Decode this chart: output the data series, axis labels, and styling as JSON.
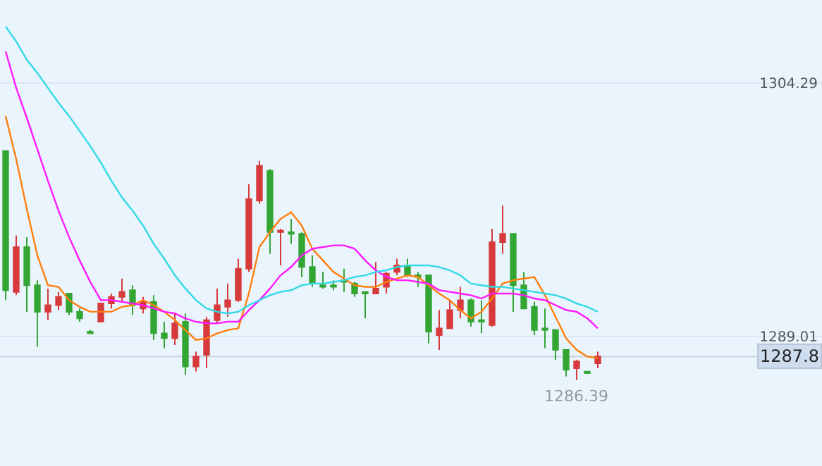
{
  "chart_data": {
    "type": "candlestick",
    "categories": [
      null,
      null,
      null,
      null,
      null,
      null,
      null,
      null,
      null,
      null,
      null,
      null,
      null,
      null,
      null,
      null,
      null,
      null,
      null,
      null,
      null,
      null,
      null,
      null,
      null,
      null,
      null,
      null,
      null,
      null,
      null,
      null,
      null,
      null,
      null,
      null,
      null,
      null,
      null,
      null,
      null,
      null,
      null,
      null,
      null,
      null,
      null,
      null,
      null,
      null,
      null,
      null,
      null,
      null,
      null,
      null,
      null
    ],
    "ohlc": [
      [
        1300.2,
        1300.2,
        1291.2,
        1291.8
      ],
      [
        1291.7,
        1295.1,
        1291.5,
        1294.4
      ],
      [
        1294.4,
        1295.0,
        1290.5,
        1292.1
      ],
      [
        1292.1,
        1292.4,
        1288.4,
        1290.5
      ],
      [
        1290.5,
        1291.9,
        1290.0,
        1290.9
      ],
      [
        1290.9,
        1291.7,
        1290.6,
        1291.4
      ],
      [
        1291.6,
        1291.6,
        1290.3,
        1290.5
      ],
      [
        1290.5,
        1290.7,
        1289.9,
        1290.1
      ],
      [
        1289.3,
        1289.4,
        1289.2,
        1289.2
      ],
      [
        1289.9,
        1291.0,
        1289.9,
        1291.0
      ],
      [
        1291.0,
        1291.6,
        1290.7,
        1291.4
      ],
      [
        1291.4,
        1292.5,
        1291.1,
        1291.7
      ],
      [
        1291.8,
        1292.1,
        1290.3,
        1290.9
      ],
      [
        1290.7,
        1291.4,
        1290.4,
        1291.1
      ],
      [
        1291.1,
        1291.5,
        1288.8,
        1289.2
      ],
      [
        1289.2,
        1289.9,
        1288.3,
        1288.9
      ],
      [
        1288.9,
        1290.4,
        1288.5,
        1289.8
      ],
      [
        1289.9,
        1290.4,
        1286.7,
        1287.2
      ],
      [
        1287.2,
        1288.1,
        1286.9,
        1287.8
      ],
      [
        1287.9,
        1290.2,
        1287.1,
        1290.0
      ],
      [
        1290.0,
        1291.9,
        1289.8,
        1290.9
      ],
      [
        1290.8,
        1292.2,
        1290.2,
        1291.2
      ],
      [
        1291.2,
        1293.7,
        1291.1,
        1293.1
      ],
      [
        1293.1,
        1298.2,
        1292.9,
        1297.3
      ],
      [
        1297.2,
        1299.6,
        1297.0,
        1299.3
      ],
      [
        1299.0,
        1299.1,
        1294.0,
        1295.3
      ],
      [
        1295.3,
        1295.5,
        1293.3,
        1295.4
      ],
      [
        1295.3,
        1296.1,
        1294.6,
        1295.2
      ],
      [
        1295.2,
        1295.3,
        1292.6,
        1293.2
      ],
      [
        1293.2,
        1293.9,
        1292.0,
        1292.2
      ],
      [
        1292.1,
        1292.9,
        1291.9,
        1292.0
      ],
      [
        1292.1,
        1292.4,
        1291.8,
        1292.0
      ],
      [
        1292.4,
        1293.1,
        1291.7,
        1292.3
      ],
      [
        1292.2,
        1292.3,
        1291.4,
        1291.6
      ],
      [
        1291.7,
        1291.7,
        1290.1,
        1291.6
      ],
      [
        1291.6,
        1293.5,
        1291.6,
        1291.9
      ],
      [
        1292.0,
        1292.9,
        1291.6,
        1292.8
      ],
      [
        1292.9,
        1293.7,
        1292.7,
        1293.3
      ],
      [
        1293.3,
        1293.7,
        1292.6,
        1292.7
      ],
      [
        1292.7,
        1292.9,
        1292.0,
        1292.6
      ],
      [
        1292.7,
        1292.7,
        1288.6,
        1289.3
      ],
      [
        1289.1,
        1290.6,
        1288.2,
        1289.5
      ],
      [
        1289.5,
        1291.2,
        1289.5,
        1290.6
      ],
      [
        1290.6,
        1292.0,
        1290.1,
        1291.2
      ],
      [
        1291.2,
        1291.3,
        1289.6,
        1289.9
      ],
      [
        1290.0,
        1291.2,
        1289.2,
        1289.9
      ],
      [
        1289.7,
        1295.5,
        1289.6,
        1294.7
      ],
      [
        1294.7,
        1296.9,
        1294.0,
        1295.2
      ],
      [
        1295.2,
        1295.2,
        1290.5,
        1292.1
      ],
      [
        1292.1,
        1292.9,
        1290.7,
        1290.7
      ],
      [
        1290.8,
        1291.1,
        1289.1,
        1289.4
      ],
      [
        1289.5,
        1290.7,
        1288.3,
        1289.4
      ],
      [
        1289.4,
        1289.4,
        1287.6,
        1288.2
      ],
      [
        1288.2,
        1288.2,
        1286.6,
        1287.0
      ],
      [
        1287.1,
        1287.6,
        1286.39,
        1287.5
      ],
      [
        1286.9,
        1286.9,
        1286.8,
        1286.8
      ],
      [
        1287.4,
        1288.1,
        1287.1,
        1287.8
      ]
    ],
    "series": [
      {
        "type": "line",
        "color": "#ff7f0e",
        "values": [
          1302.3,
          1299.7,
          1296.7,
          1293.9,
          1292.1,
          1292.0,
          1291.2,
          1290.8,
          1290.5,
          1290.5,
          1290.5,
          1290.8,
          1290.9,
          1291.2,
          1290.9,
          1290.5,
          1290.0,
          1289.4,
          1288.8,
          1288.9,
          1289.2,
          1289.4,
          1289.5,
          1291.6,
          1294.4,
          1295.3,
          1296.1,
          1296.5,
          1295.7,
          1294.3,
          1293.6,
          1292.9,
          1292.5,
          1292.1,
          1292.0,
          1292.0,
          1292.3,
          1292.5,
          1292.7,
          1292.6,
          1292.1,
          1291.6,
          1291.2,
          1290.6,
          1290.1,
          1290.5,
          1291.3,
          1292.2,
          1292.4,
          1292.5,
          1292.6,
          1291.5,
          1290.2,
          1288.9,
          1288.2,
          1287.8,
          1287.7
        ]
      },
      {
        "type": "line",
        "color": "#ff1aff",
        "values": [
          1306.2,
          1304.0,
          1302.2,
          1300.3,
          1298.4,
          1296.6,
          1295.0,
          1293.6,
          1292.3,
          1291.2,
          1291.2,
          1291.1,
          1291.0,
          1290.9,
          1290.7,
          1290.5,
          1290.4,
          1290.1,
          1289.9,
          1289.8,
          1289.8,
          1289.9,
          1289.9,
          1290.6,
          1291.2,
          1291.9,
          1292.7,
          1293.2,
          1293.9,
          1294.3,
          1294.4,
          1294.5,
          1294.5,
          1294.3,
          1293.6,
          1293.0,
          1292.6,
          1292.4,
          1292.4,
          1292.3,
          1292.2,
          1291.8,
          1291.7,
          1291.6,
          1291.5,
          1291.3,
          1291.6,
          1291.6,
          1291.6,
          1291.5,
          1291.3,
          1291.2,
          1290.9,
          1290.6,
          1290.5,
          1290.1,
          1289.5
        ]
      },
      {
        "type": "line",
        "color": "#33d9e6",
        "values": [
          1307.7,
          1306.8,
          1305.7,
          1304.9,
          1304.0,
          1303.1,
          1302.3,
          1301.4,
          1300.5,
          1299.5,
          1298.4,
          1297.4,
          1296.6,
          1295.7,
          1294.6,
          1293.7,
          1292.7,
          1291.9,
          1291.2,
          1290.7,
          1290.5,
          1290.4,
          1290.5,
          1290.9,
          1291.2,
          1291.5,
          1291.7,
          1291.8,
          1292.1,
          1292.2,
          1292.2,
          1292.3,
          1292.4,
          1292.6,
          1292.7,
          1292.9,
          1293.0,
          1293.2,
          1293.3,
          1293.3,
          1293.3,
          1293.2,
          1293.0,
          1292.7,
          1292.2,
          1292.1,
          1292.0,
          1292.0,
          1291.9,
          1291.8,
          1291.7,
          1291.6,
          1291.5,
          1291.3,
          1291.0,
          1290.8,
          1290.5
        ]
      }
    ],
    "ylim": [
      1281.2,
      1309.3
    ],
    "yticks": [
      1304.29,
      1289.01
    ],
    "grid": "y",
    "marker": "none",
    "ref_lines": [
      {
        "axis": "y",
        "value": 1287.8,
        "label": "1287.8"
      }
    ],
    "annotations": [
      {
        "text": "1286.39",
        "y": 1286.39
      }
    ]
  }
}
